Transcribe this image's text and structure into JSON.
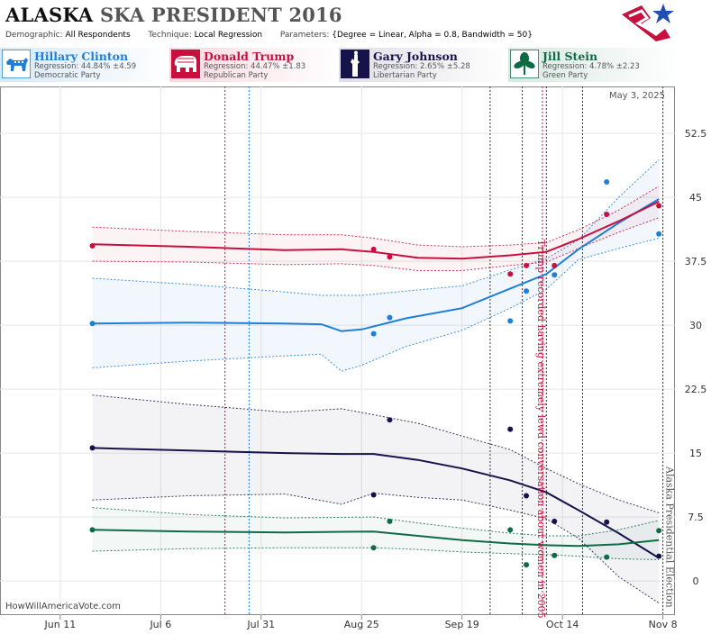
{
  "header": {
    "title_state": "ALASKA",
    "title_rest": "SKA PRESIDENT 2016",
    "demographic_label": "Demographic:",
    "demographic_value": "All Respondents",
    "technique_label": "Technique:",
    "technique_value": "Local Regression",
    "parameters_label": "Parameters:",
    "parameters_value": "{Degree = Linear, Alpha = 0.8, Bandwidth = 50}"
  },
  "candidates": [
    {
      "name": "Hillary Clinton",
      "regression": "Regression: 44.84% ±4.59",
      "party": "Democratic Party",
      "color": "#1f7fd6",
      "icon": "donkey-icon"
    },
    {
      "name": "Donald Trump",
      "regression": "Regression: 44.47% ±1.83",
      "party": "Republican Party",
      "color": "#c8103e",
      "icon": "elephant-icon"
    },
    {
      "name": "Gary Johnson",
      "regression": "Regression: 2.65% ±5.28",
      "party": "Libertarian Party",
      "color": "#16134a",
      "icon": "liberty-icon"
    },
    {
      "name": "Jill Stein",
      "regression": "Regression: 4.78% ±2.23",
      "party": "Green Party",
      "color": "#0f6b45",
      "icon": "leaf-icon"
    }
  ],
  "date_stamp": "May 3, 2025",
  "watermark": "HowWillAmericaVote.com",
  "chart_data": {
    "type": "line",
    "x_ticks": [
      "Jun 11",
      "Jul 6",
      "Jul 31",
      "Aug 25",
      "Sep 19",
      "Oct 14",
      "Nov 8"
    ],
    "x_range": [
      "2016-05-27",
      "2016-11-11"
    ],
    "y_ticks": [
      "0",
      "7.5",
      "15",
      "22.5",
      "30",
      "37.5",
      "45",
      "52.5"
    ],
    "ylim": [
      -4,
      58
    ],
    "annotations": [
      {
        "text": "Trump recorded having extremely lewd conversation about women in 2005",
        "date": "2016-10-07",
        "color": "#c8103e"
      },
      {
        "text": "Alaska Presidential Election",
        "date": "2016-11-08",
        "color": "#555555"
      }
    ],
    "event_lines": [
      {
        "date": "2016-07-22",
        "color": "#c8103e",
        "style": "dotted"
      },
      {
        "date": "2016-07-28",
        "color": "#1f7fd6",
        "style": "dotted"
      },
      {
        "date": "2016-09-26",
        "color": "#333333",
        "style": "dotted"
      },
      {
        "date": "2016-10-04",
        "color": "#333333",
        "style": "dotted"
      },
      {
        "date": "2016-10-09",
        "color": "#c8103e",
        "style": "dotted"
      },
      {
        "date": "2016-10-10",
        "color": "#333333",
        "style": "dotted"
      },
      {
        "date": "2016-10-19",
        "color": "#333333",
        "style": "dotted"
      },
      {
        "date": "2016-11-08",
        "color": "#333333",
        "style": "dotted"
      }
    ],
    "series": [
      {
        "name": "Hillary Clinton",
        "color": "#1f7fd6",
        "fill": "rgba(31,127,214,0.06)",
        "trend": [
          [
            "2016-06-19",
            30.2
          ],
          [
            "2016-07-13",
            30.3
          ],
          [
            "2016-08-06",
            30.2
          ],
          [
            "2016-08-15",
            30.1
          ],
          [
            "2016-08-20",
            29.3
          ],
          [
            "2016-08-25",
            29.5
          ],
          [
            "2016-09-05",
            30.8
          ],
          [
            "2016-09-19",
            32.0
          ],
          [
            "2016-10-01",
            34.3
          ],
          [
            "2016-10-10",
            36.0
          ],
          [
            "2016-10-18",
            38.9
          ],
          [
            "2016-10-28",
            42.0
          ],
          [
            "2016-11-07",
            44.8
          ]
        ],
        "upper": [
          [
            "2016-06-19",
            35.5
          ],
          [
            "2016-07-13",
            34.8
          ],
          [
            "2016-08-06",
            33.9
          ],
          [
            "2016-08-15",
            33.5
          ],
          [
            "2016-08-25",
            33.5
          ],
          [
            "2016-09-05",
            34.0
          ],
          [
            "2016-09-19",
            34.6
          ],
          [
            "2016-10-01",
            36.5
          ],
          [
            "2016-10-10",
            37.8
          ],
          [
            "2016-10-18",
            40.0
          ],
          [
            "2016-10-28",
            45.0
          ],
          [
            "2016-11-07",
            49.4
          ]
        ],
        "lower": [
          [
            "2016-06-19",
            25.0
          ],
          [
            "2016-07-13",
            25.8
          ],
          [
            "2016-08-06",
            26.4
          ],
          [
            "2016-08-15",
            26.6
          ],
          [
            "2016-08-20",
            24.6
          ],
          [
            "2016-08-25",
            25.3
          ],
          [
            "2016-09-05",
            27.5
          ],
          [
            "2016-09-19",
            29.4
          ],
          [
            "2016-10-01",
            32.0
          ],
          [
            "2016-10-10",
            34.2
          ],
          [
            "2016-10-18",
            37.7
          ],
          [
            "2016-10-28",
            39.0
          ],
          [
            "2016-11-07",
            40.2
          ]
        ],
        "points": [
          [
            "2016-06-19",
            30.2
          ],
          [
            "2016-08-28",
            29.0
          ],
          [
            "2016-09-01",
            30.9
          ],
          [
            "2016-10-01",
            30.5
          ],
          [
            "2016-10-05",
            34.0
          ],
          [
            "2016-10-12",
            35.9
          ],
          [
            "2016-10-25",
            46.8
          ],
          [
            "2016-11-07",
            40.7
          ]
        ]
      },
      {
        "name": "Donald Trump",
        "color": "#c8103e",
        "fill": "rgba(200,16,62,0.05)",
        "trend": [
          [
            "2016-06-19",
            39.5
          ],
          [
            "2016-07-13",
            39.2
          ],
          [
            "2016-08-06",
            38.8
          ],
          [
            "2016-08-20",
            38.9
          ],
          [
            "2016-08-28",
            38.6
          ],
          [
            "2016-09-08",
            37.9
          ],
          [
            "2016-09-19",
            37.8
          ],
          [
            "2016-10-01",
            38.2
          ],
          [
            "2016-10-10",
            38.6
          ],
          [
            "2016-10-18",
            40.1
          ],
          [
            "2016-10-28",
            42.2
          ],
          [
            "2016-11-07",
            44.5
          ]
        ],
        "upper": [
          [
            "2016-06-19",
            41.5
          ],
          [
            "2016-07-13",
            41.0
          ],
          [
            "2016-08-06",
            40.6
          ],
          [
            "2016-08-20",
            40.6
          ],
          [
            "2016-08-28",
            40.2
          ],
          [
            "2016-09-08",
            39.4
          ],
          [
            "2016-09-19",
            39.2
          ],
          [
            "2016-10-01",
            39.4
          ],
          [
            "2016-10-10",
            39.7
          ],
          [
            "2016-10-18",
            41.2
          ],
          [
            "2016-10-28",
            43.5
          ],
          [
            "2016-11-07",
            46.3
          ]
        ],
        "lower": [
          [
            "2016-06-19",
            37.5
          ],
          [
            "2016-07-13",
            37.4
          ],
          [
            "2016-08-06",
            37.1
          ],
          [
            "2016-08-20",
            37.2
          ],
          [
            "2016-08-28",
            37.0
          ],
          [
            "2016-09-08",
            36.4
          ],
          [
            "2016-09-19",
            36.4
          ],
          [
            "2016-10-01",
            37.0
          ],
          [
            "2016-10-10",
            37.4
          ],
          [
            "2016-10-18",
            39.0
          ],
          [
            "2016-10-28",
            40.9
          ],
          [
            "2016-11-07",
            42.6
          ]
        ],
        "points": [
          [
            "2016-06-19",
            39.3
          ],
          [
            "2016-08-28",
            38.9
          ],
          [
            "2016-09-01",
            38.0
          ],
          [
            "2016-10-01",
            36.0
          ],
          [
            "2016-10-05",
            37.0
          ],
          [
            "2016-10-12",
            37.0
          ],
          [
            "2016-10-25",
            43.0
          ],
          [
            "2016-11-07",
            44.0
          ]
        ]
      },
      {
        "name": "Gary Johnson",
        "color": "#16134a",
        "fill": "rgba(22,19,74,0.05)",
        "trend": [
          [
            "2016-06-19",
            15.6
          ],
          [
            "2016-07-13",
            15.3
          ],
          [
            "2016-08-06",
            15.0
          ],
          [
            "2016-08-20",
            14.9
          ],
          [
            "2016-08-28",
            14.9
          ],
          [
            "2016-09-08",
            14.2
          ],
          [
            "2016-09-19",
            13.2
          ],
          [
            "2016-10-01",
            11.8
          ],
          [
            "2016-10-10",
            10.4
          ],
          [
            "2016-10-18",
            8.3
          ],
          [
            "2016-10-28",
            5.6
          ],
          [
            "2016-11-07",
            2.7
          ]
        ],
        "upper": [
          [
            "2016-06-19",
            21.8
          ],
          [
            "2016-07-13",
            20.7
          ],
          [
            "2016-08-06",
            19.8
          ],
          [
            "2016-08-20",
            20.2
          ],
          [
            "2016-08-28",
            19.5
          ],
          [
            "2016-09-08",
            18.5
          ],
          [
            "2016-09-19",
            17.0
          ],
          [
            "2016-10-01",
            15.4
          ],
          [
            "2016-10-10",
            13.2
          ],
          [
            "2016-10-18",
            11.4
          ],
          [
            "2016-10-28",
            9.5
          ],
          [
            "2016-11-07",
            8.0
          ]
        ],
        "lower": [
          [
            "2016-06-19",
            9.5
          ],
          [
            "2016-07-13",
            10.0
          ],
          [
            "2016-08-06",
            10.2
          ],
          [
            "2016-08-20",
            9.0
          ],
          [
            "2016-08-28",
            10.3
          ],
          [
            "2016-09-08",
            9.8
          ],
          [
            "2016-09-19",
            9.5
          ],
          [
            "2016-10-01",
            8.3
          ],
          [
            "2016-10-10",
            7.3
          ],
          [
            "2016-10-18",
            5.0
          ],
          [
            "2016-10-28",
            0.5
          ],
          [
            "2016-11-07",
            -2.6
          ]
        ],
        "points": [
          [
            "2016-06-19",
            15.6
          ],
          [
            "2016-08-28",
            10.1
          ],
          [
            "2016-09-01",
            18.9
          ],
          [
            "2016-10-01",
            17.8
          ],
          [
            "2016-10-05",
            10.0
          ],
          [
            "2016-10-12",
            7.0
          ],
          [
            "2016-10-25",
            6.9
          ],
          [
            "2016-11-07",
            2.9
          ]
        ]
      },
      {
        "name": "Jill Stein",
        "color": "#0f6b45",
        "fill": "rgba(15,107,69,0.05)",
        "trend": [
          [
            "2016-06-19",
            6.0
          ],
          [
            "2016-07-13",
            5.8
          ],
          [
            "2016-08-06",
            5.7
          ],
          [
            "2016-08-28",
            5.8
          ],
          [
            "2016-09-08",
            5.3
          ],
          [
            "2016-09-19",
            4.8
          ],
          [
            "2016-10-01",
            4.4
          ],
          [
            "2016-10-10",
            4.2
          ],
          [
            "2016-10-18",
            4.1
          ],
          [
            "2016-10-28",
            4.3
          ],
          [
            "2016-11-07",
            4.8
          ]
        ],
        "upper": [
          [
            "2016-06-19",
            8.6
          ],
          [
            "2016-07-13",
            7.8
          ],
          [
            "2016-08-06",
            7.4
          ],
          [
            "2016-08-28",
            7.5
          ],
          [
            "2016-09-08",
            6.8
          ],
          [
            "2016-09-19",
            6.2
          ],
          [
            "2016-10-01",
            5.6
          ],
          [
            "2016-10-10",
            5.3
          ],
          [
            "2016-10-18",
            5.3
          ],
          [
            "2016-10-28",
            6.0
          ],
          [
            "2016-11-07",
            7.1
          ]
        ],
        "lower": [
          [
            "2016-06-19",
            3.5
          ],
          [
            "2016-07-13",
            3.8
          ],
          [
            "2016-08-06",
            3.9
          ],
          [
            "2016-08-28",
            3.9
          ],
          [
            "2016-09-08",
            3.7
          ],
          [
            "2016-09-19",
            3.4
          ],
          [
            "2016-10-01",
            3.2
          ],
          [
            "2016-10-10",
            3.1
          ],
          [
            "2016-10-18",
            2.9
          ],
          [
            "2016-10-28",
            2.6
          ],
          [
            "2016-11-07",
            2.5
          ]
        ],
        "points": [
          [
            "2016-06-19",
            6.0
          ],
          [
            "2016-08-28",
            3.9
          ],
          [
            "2016-09-01",
            7.0
          ],
          [
            "2016-10-01",
            6.0
          ],
          [
            "2016-10-05",
            1.9
          ],
          [
            "2016-10-12",
            3.0
          ],
          [
            "2016-10-25",
            2.8
          ],
          [
            "2016-11-07",
            5.9
          ]
        ]
      }
    ]
  }
}
